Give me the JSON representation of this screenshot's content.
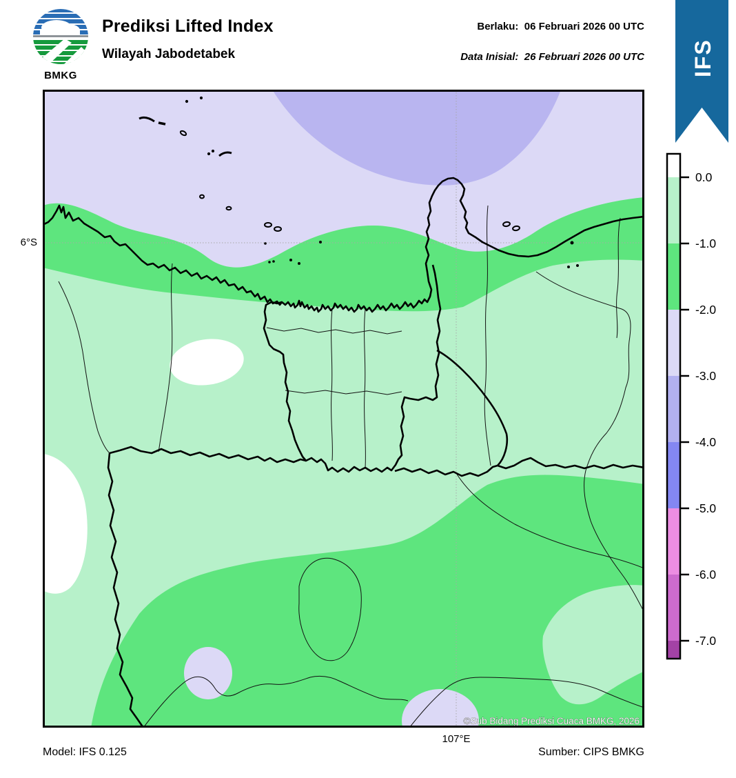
{
  "header": {
    "logo": "BMKG",
    "title": "Prediksi Lifted Index",
    "subtitle": "Wilayah Jabodetabek",
    "valid_label": "Berlaku:",
    "valid_value": "06 Februari 2026 00 UTC",
    "initial_label": "Data Inisial:",
    "initial_value": "26 Februari 2026 00 UTC",
    "ribbon": "IFS",
    "ribbon_color": "#16689d"
  },
  "map": {
    "lat_tick": "6°S",
    "lon_tick": "107°E",
    "copyright": "©Sub Bidang Prediksi Cuaca BMKG, 2026",
    "colors": {
      "lavender": "#dcd9f6",
      "periwinkle": "#b9b5f0",
      "light_green": "#b7f1ca",
      "green": "#5ee57e",
      "white": "#ffffff",
      "gridline": "#a8a8a8",
      "boundary": "#000000"
    }
  },
  "footer": {
    "model": "Model: IFS 0.125",
    "source": "Sumber: CIPS BMKG"
  },
  "colorbar": {
    "tick_labels": [
      "0.0",
      "-1.0",
      "-2.0",
      "-3.0",
      "-4.0",
      "-5.0",
      "-6.0",
      "-7.0"
    ],
    "segment_colors": [
      "#ffffff",
      "#b7f1ca",
      "#5ee57e",
      "#dcd9f6",
      "#b2b0f0",
      "#8487f2",
      "#ec8de2",
      "#cd6bce",
      "#a342a5"
    ],
    "segment_heights": [
      34,
      96,
      96,
      96,
      96,
      96,
      96,
      96,
      26
    ]
  }
}
